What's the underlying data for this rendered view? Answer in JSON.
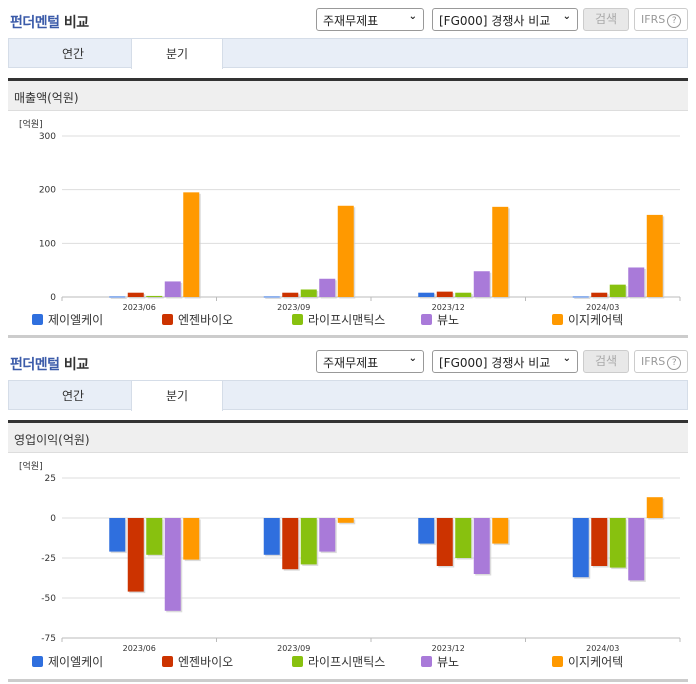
{
  "sections": [
    {
      "title_blue": "펀더멘털",
      "title_rest": " 비교",
      "select1": "주재무제표",
      "select2": "[FG000] 경쟁사 비교",
      "search_label": "검색",
      "ifrs_label": "IFRS",
      "help_glyph": "?",
      "tabs": [
        {
          "label": "연간"
        },
        {
          "label": "분기"
        }
      ],
      "active_tab": "분기",
      "metric_label": "매출액(억원)",
      "unit_label": "[억원]"
    },
    {
      "title_blue": "펀더멘털",
      "title_rest": " 비교",
      "select1": "주재무제표",
      "select2": "[FG000] 경쟁사 비교",
      "search_label": "검색",
      "ifrs_label": "IFRS",
      "help_glyph": "?",
      "tabs": [
        {
          "label": "연간"
        },
        {
          "label": "분기"
        }
      ],
      "active_tab": "분기",
      "metric_label": "영업이익(억원)",
      "unit_label": "[억원]"
    }
  ],
  "legend": [
    {
      "name": "제이엘케이",
      "color": "#2f6fde"
    },
    {
      "name": "엔젠바이오",
      "color": "#cc3300"
    },
    {
      "name": "라이프시맨틱스",
      "color": "#88c10f"
    },
    {
      "name": "뷰노",
      "color": "#a97ad9"
    },
    {
      "name": "이지케어텍",
      "color": "#ff9900"
    }
  ],
  "chart_data": [
    {
      "type": "bar",
      "title": "매출액(억원)",
      "ylabel": "[억원]",
      "xlabel": "",
      "categories": [
        "2023/06",
        "2023/09",
        "2023/12",
        "2024/03"
      ],
      "yticks": [
        0,
        100,
        200,
        300
      ],
      "ylim": [
        0,
        300
      ],
      "grid": true,
      "legend_position": "bottom",
      "series": [
        {
          "name": "제이엘케이",
          "values": [
            1,
            1,
            8,
            1
          ]
        },
        {
          "name": "엔젠바이오",
          "values": [
            8,
            8,
            10,
            8
          ]
        },
        {
          "name": "라이프시맨틱스",
          "values": [
            2,
            14,
            8,
            23
          ]
        },
        {
          "name": "뷰노",
          "values": [
            29,
            34,
            48,
            55
          ]
        },
        {
          "name": "이지케어텍",
          "values": [
            195,
            170,
            168,
            153
          ]
        }
      ]
    },
    {
      "type": "bar",
      "title": "영업이익(억원)",
      "ylabel": "[억원]",
      "xlabel": "",
      "categories": [
        "2023/06",
        "2023/09",
        "2023/12",
        "2024/03"
      ],
      "yticks": [
        25,
        0,
        -25,
        -50,
        -75
      ],
      "ylim": [
        -75,
        25
      ],
      "grid": true,
      "legend_position": "bottom",
      "series": [
        {
          "name": "제이엘케이",
          "values": [
            -21,
            -23,
            -16,
            -37
          ]
        },
        {
          "name": "엔젠바이오",
          "values": [
            -46,
            -32,
            -30,
            -30
          ]
        },
        {
          "name": "라이프시맨틱스",
          "values": [
            -23,
            -29,
            -25,
            -31
          ]
        },
        {
          "name": "뷰노",
          "values": [
            -58,
            -21,
            -35,
            -39
          ]
        },
        {
          "name": "이지케어텍",
          "values": [
            -26,
            -3,
            -16,
            13
          ]
        }
      ]
    }
  ]
}
